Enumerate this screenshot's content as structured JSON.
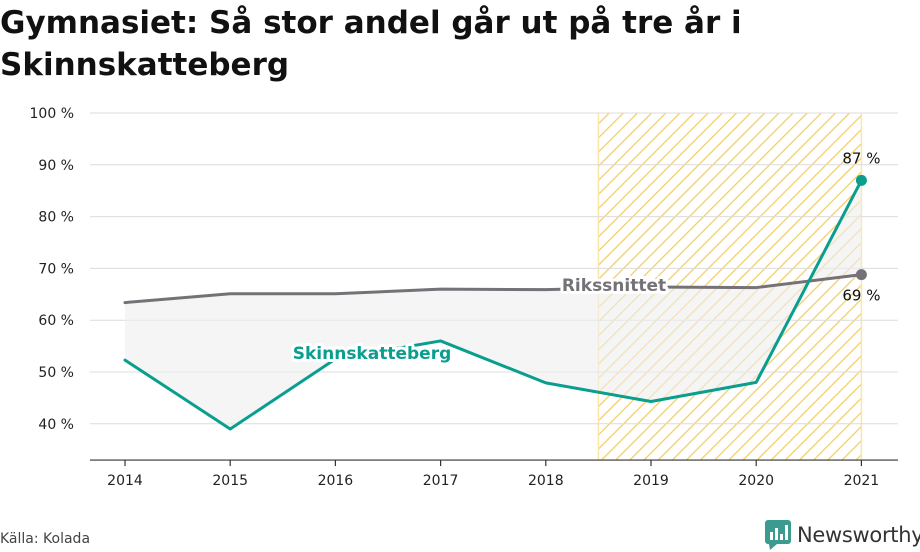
{
  "title": "Gymnasiet: Så stor andel går ut på tre år i Skinnskatteberg",
  "source": "Källa: Kolada",
  "brand": "Newsworthy",
  "colors": {
    "local": "#0a9e8f",
    "national": "#757277",
    "band": "#fbe6a8",
    "hatch": "#f3cf6a",
    "area": "#efefef",
    "grid": "#dcdcdc",
    "brand_icon": "#3a9b8e"
  },
  "chart_data": {
    "type": "line",
    "x": [
      "2014",
      "2015",
      "2016",
      "2017",
      "2018",
      "2019",
      "2020",
      "2021"
    ],
    "ylim": [
      33,
      100
    ],
    "yticks": [
      40,
      50,
      60,
      70,
      80,
      90,
      100
    ],
    "ytick_labels": [
      "40 %",
      "50 %",
      "60 %",
      "70 %",
      "80 %",
      "90 %",
      "100 %"
    ],
    "highlight_range": [
      "2018.5",
      "2021"
    ],
    "series": [
      {
        "name": "Rikssnittet",
        "values": [
          63.4,
          65.1,
          65.1,
          66.0,
          65.9,
          66.4,
          66.3,
          68.8
        ],
        "end_label": "69 %"
      },
      {
        "name": "Skinnskatteberg",
        "values": [
          52.3,
          39.0,
          52.5,
          56.0,
          47.9,
          44.3,
          48.0,
          87.0
        ],
        "end_label": "87 %"
      }
    ]
  }
}
